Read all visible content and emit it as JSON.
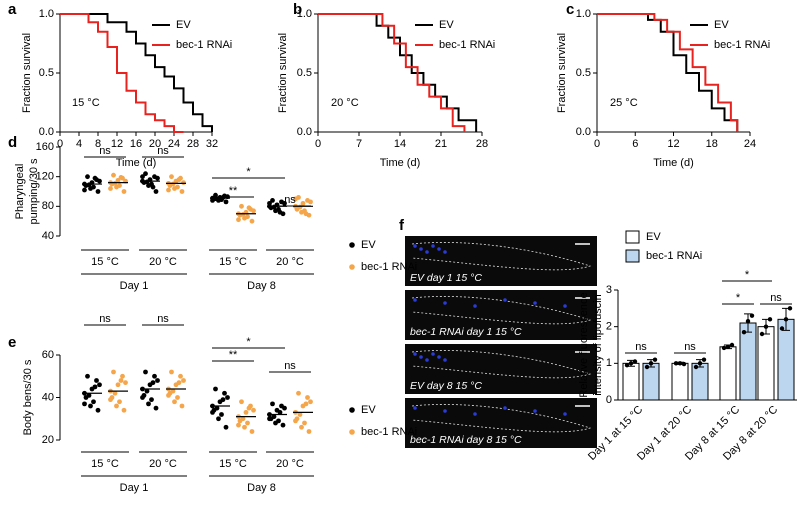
{
  "chart_data": [
    {
      "type": "step",
      "label": "a",
      "annotation": "15 °C",
      "xlabel": "Time (d)",
      "ylabel": "Fraction survival",
      "xlim": [
        0,
        32
      ],
      "xticks": [
        0,
        4,
        8,
        12,
        16,
        20,
        24,
        28,
        32
      ],
      "ylim": [
        0,
        1
      ],
      "yticks": [
        {
          "value": 0,
          "label": "0.0"
        },
        0.5,
        {
          "value": 1,
          "label": "1.0"
        }
      ],
      "series": [
        {
          "name": "EV",
          "color": "#000000",
          "x": [
            0,
            10,
            10,
            14,
            14,
            16,
            16,
            18,
            18,
            20,
            20,
            22,
            22,
            24,
            24,
            26,
            26,
            28,
            28,
            30,
            30,
            32,
            32
          ],
          "values": [
            1,
            1,
            0.93,
            0.93,
            0.85,
            0.85,
            0.75,
            0.75,
            0.65,
            0.65,
            0.55,
            0.55,
            0.47,
            0.47,
            0.37,
            0.37,
            0.25,
            0.25,
            0.15,
            0.15,
            0.05,
            0.05,
            0
          ]
        },
        {
          "name": "bec-1 RNAi",
          "color": "#e8231f",
          "x": [
            0,
            6,
            6,
            8,
            8,
            10,
            10,
            12,
            12,
            14,
            14,
            16,
            16,
            18,
            18,
            20,
            20,
            22,
            22,
            24,
            24,
            26
          ],
          "values": [
            1,
            1,
            0.93,
            0.93,
            0.85,
            0.85,
            0.72,
            0.72,
            0.5,
            0.5,
            0.35,
            0.35,
            0.25,
            0.25,
            0.15,
            0.15,
            0.1,
            0.1,
            0.05,
            0.05,
            0,
            0
          ]
        }
      ]
    },
    {
      "type": "step",
      "label": "b",
      "annotation": "20 °C",
      "xlabel": "Time (d)",
      "ylabel": "Fraction survival",
      "xlim": [
        0,
        28
      ],
      "xticks": [
        0,
        7,
        14,
        21,
        28
      ],
      "ylim": [
        0,
        1
      ],
      "yticks": [
        {
          "value": 0,
          "label": "0.0"
        },
        0.5,
        {
          "value": 1,
          "label": "1.0"
        }
      ],
      "series": [
        {
          "name": "EV",
          "color": "#000000",
          "x": [
            0,
            10,
            10,
            12,
            12,
            14,
            14,
            16,
            16,
            18,
            18,
            20,
            20,
            22,
            22,
            24,
            24,
            27,
            27
          ],
          "values": [
            1,
            1,
            0.9,
            0.9,
            0.8,
            0.8,
            0.65,
            0.65,
            0.5,
            0.5,
            0.4,
            0.4,
            0.3,
            0.3,
            0.2,
            0.2,
            0.1,
            0.1,
            0
          ]
        },
        {
          "name": "bec-1 RNAi",
          "color": "#e8231f",
          "x": [
            0,
            11,
            11,
            13,
            13,
            15,
            15,
            17,
            17,
            19,
            19,
            21,
            21,
            23,
            23,
            25,
            25
          ],
          "values": [
            1,
            1,
            0.9,
            0.9,
            0.75,
            0.75,
            0.55,
            0.55,
            0.4,
            0.4,
            0.3,
            0.3,
            0.2,
            0.2,
            0.05,
            0.05,
            0
          ]
        }
      ]
    },
    {
      "type": "step",
      "label": "c",
      "annotation": "25 °C",
      "xlabel": "Time (d)",
      "ylabel": "Fraction survival",
      "xlim": [
        0,
        24
      ],
      "xticks": [
        0,
        6,
        12,
        18,
        24
      ],
      "ylim": [
        0,
        1
      ],
      "yticks": [
        {
          "value": 0,
          "label": "0.0"
        },
        0.5,
        {
          "value": 1,
          "label": "1.0"
        }
      ],
      "series": [
        {
          "name": "EV",
          "color": "#000000",
          "x": [
            0,
            8,
            8,
            10,
            10,
            12,
            12,
            14,
            14,
            16,
            16,
            18,
            18,
            20,
            20,
            22,
            22
          ],
          "values": [
            1,
            1,
            0.95,
            0.95,
            0.85,
            0.85,
            0.65,
            0.65,
            0.5,
            0.5,
            0.35,
            0.35,
            0.2,
            0.2,
            0.1,
            0.1,
            0
          ]
        },
        {
          "name": "bec-1 RNAi",
          "color": "#e8231f",
          "x": [
            0,
            9,
            9,
            11,
            11,
            13,
            13,
            15,
            15,
            17,
            17,
            19,
            19,
            21,
            21,
            22,
            22
          ],
          "values": [
            1,
            1,
            0.95,
            0.95,
            0.85,
            0.85,
            0.7,
            0.7,
            0.55,
            0.55,
            0.4,
            0.4,
            0.25,
            0.25,
            0.1,
            0.1,
            0
          ]
        }
      ]
    },
    {
      "type": "dot",
      "label": "d",
      "ylabel": [
        "Pharyngeal",
        "pumping/30 s"
      ],
      "categories": [
        "15 °C",
        "20 °C",
        "15 °C",
        "20 °C"
      ],
      "groups": [
        "Day 1",
        "Day 8"
      ],
      "ylim": [
        40,
        160
      ],
      "yticks": [
        40,
        80,
        120,
        160
      ],
      "series": [
        {
          "name": "EV",
          "color": "#000000",
          "values": [
            [
              110,
              104,
              116,
              108,
              112,
              100,
              120,
              106,
              114,
              109,
              118,
              102
            ],
            [
              114,
              108,
              120,
              112,
              116,
              100,
              124,
              110,
              118,
              113,
              106,
              120
            ],
            [
              91,
              88,
              94,
              90,
              92,
              86,
              95,
              89,
              93,
              90,
              92,
              88
            ],
            [
              80,
              74,
              86,
              78,
              82,
              70,
              88,
              76,
              84,
              79,
              72,
              84
            ]
          ],
          "means": [
            110,
            114,
            91,
            80
          ]
        },
        {
          "name": "bec-1 RNAi",
          "color": "#f5a54a",
          "values": [
            [
              112,
              106,
              118,
              110,
              115,
              100,
              122,
              108,
              114,
              111,
              119,
              104
            ],
            [
              111,
              104,
              118,
              108,
              114,
              100,
              120,
              106,
              112,
              110,
              116,
              102
            ],
            [
              70,
              64,
              76,
              68,
              72,
              60,
              80,
              66,
              74,
              69,
              78,
              62
            ],
            [
              80,
              72,
              88,
              76,
              84,
              68,
              92,
              74,
              86,
              79,
              70,
              90
            ]
          ],
          "means": [
            112,
            111,
            70,
            80
          ]
        }
      ],
      "annotations": [
        "ns",
        "ns",
        "*",
        "**",
        "ns"
      ]
    },
    {
      "type": "dot",
      "label": "e",
      "ylabel": [
        "Body bens/30 s"
      ],
      "categories": [
        "15 °C",
        "20 °C",
        "15 °C",
        "20 °C"
      ],
      "groups": [
        "Day 1",
        "Day 8"
      ],
      "ylim": [
        20,
        60
      ],
      "yticks": [
        20,
        40,
        60
      ],
      "series": [
        {
          "name": "EV",
          "color": "#000000",
          "values": [
            [
              42,
              36,
              48,
              40,
              44,
              34,
              50,
              38,
              46,
              41,
              45,
              37
            ],
            [
              44,
              37,
              50,
              41,
              46,
              35,
              52,
              39,
              48,
              43,
              47,
              40
            ],
            [
              36,
              30,
              42,
              34,
              38,
              26,
              44,
              32,
              40,
              35,
              39,
              33
            ],
            [
              32,
              28,
              36,
              30,
              34,
              27,
              37,
              29,
              35,
              31,
              33,
              30
            ]
          ],
          "means": [
            42,
            44,
            36,
            32
          ]
        },
        {
          "name": "bec-1 RNAi",
          "color": "#f5a54a",
          "values": [
            [
              43,
              36,
              50,
              40,
              46,
              34,
              52,
              38,
              47,
              42,
              48,
              39
            ],
            [
              44,
              38,
              50,
              42,
              46,
              36,
              52,
              40,
              48,
              43,
              47,
              41
            ],
            [
              31,
              26,
              36,
              29,
              33,
              24,
              38,
              28,
              34,
              30,
              35,
              27
            ],
            [
              33,
              26,
              40,
              30,
              36,
              24,
              42,
              28,
              38,
              32,
              37,
              29
            ]
          ],
          "means": [
            43,
            44,
            31,
            33
          ]
        }
      ],
      "annotations": [
        "ns",
        "ns",
        "*",
        "**",
        "ns"
      ]
    },
    {
      "type": "bar",
      "ylabel": [
        "Relative fluorescence",
        "intensity of lipofuscin"
      ],
      "categories": [
        "Day 1 at 15 °C",
        "Day 1 at 20 °C",
        "Day 8 at 15 °C",
        "Day 8 at 20 °C"
      ],
      "ylim": [
        0,
        3
      ],
      "yticks": [
        0,
        1,
        2,
        3
      ],
      "series": [
        {
          "name": "EV",
          "color": "#ffffff",
          "values": [
            1.0,
            1.0,
            1.45,
            2.0
          ],
          "errors": [
            0.08,
            0.03,
            0.05,
            0.2
          ],
          "points": [
            [
              0.95,
              1.0,
              1.05
            ],
            [
              1.0,
              1.0,
              0.98
            ],
            [
              1.42,
              1.45,
              1.5
            ],
            [
              1.8,
              2.0,
              2.2
            ]
          ]
        },
        {
          "name": "bec-1 RNAi",
          "color": "#bcd6f0",
          "values": [
            1.0,
            1.0,
            2.1,
            2.2
          ],
          "errors": [
            0.1,
            0.1,
            0.25,
            0.3
          ],
          "points": [
            [
              0.9,
              1.0,
              1.1
            ],
            [
              0.9,
              1.0,
              1.1
            ],
            [
              1.85,
              2.15,
              2.3
            ],
            [
              1.95,
              2.2,
              2.5
            ]
          ]
        }
      ],
      "annotations": [
        "ns",
        "ns",
        "*",
        "ns",
        "*"
      ]
    }
  ],
  "micrographs": {
    "label": "f",
    "captions": [
      "EV day 1 15 °C",
      "bec-1 RNAi day 1 15 °C",
      "EV day 8 15 °C",
      "bec-1 RNAi day 8 15 °C"
    ]
  }
}
